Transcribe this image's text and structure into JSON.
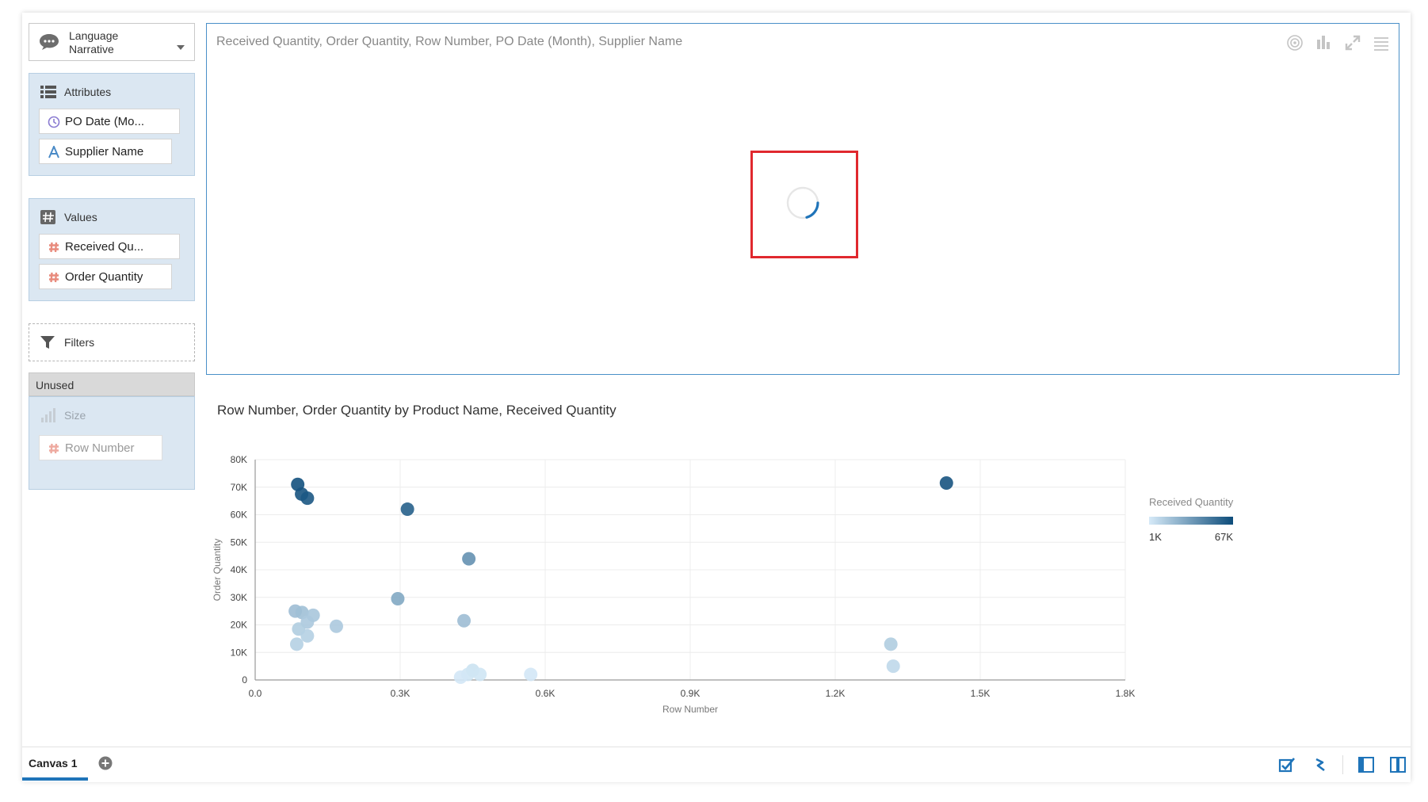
{
  "left_panel": {
    "narrative": {
      "line1": "Language",
      "line2": "Narrative"
    },
    "attributes": {
      "title": "Attributes",
      "items": [
        "PO Date (Mo...",
        "Supplier Name"
      ]
    },
    "values": {
      "title": "Values",
      "items": [
        "Received Qu...",
        "Order Quantity"
      ]
    },
    "filters": {
      "title": "Filters"
    },
    "unused": {
      "title": "Unused",
      "size_label": "Size",
      "items": [
        "Row Number"
      ]
    }
  },
  "top_viz": {
    "title": "Received Quantity, Order Quantity, Row Number, PO Date (Month), Supplier Name",
    "highlight_color": "#e0282e"
  },
  "chart": {
    "title": "Row Number, Order Quantity by Product Name, Received Quantity"
  },
  "chart_data": {
    "type": "scatter",
    "title": "Row Number, Order Quantity by Product Name, Received Quantity",
    "xlabel": "Row Number",
    "ylabel": "Order Quantity",
    "xlim": [
      0,
      1800
    ],
    "ylim": [
      0,
      80000
    ],
    "xticks": [
      "0.0",
      "0.3K",
      "0.6K",
      "0.9K",
      "1.2K",
      "1.5K",
      "1.8K"
    ],
    "yticks": [
      "0",
      "10K",
      "20K",
      "30K",
      "40K",
      "50K",
      "60K",
      "70K",
      "80K"
    ],
    "grid": true,
    "legend": {
      "title": "Received Quantity",
      "min_label": "1K",
      "max_label": "67K",
      "position": "right",
      "color_low": "#d6eaf8",
      "color_high": "#0d4c7a"
    },
    "points": [
      {
        "x": 88,
        "y": 71000,
        "c": 64000
      },
      {
        "x": 96,
        "y": 67500,
        "c": 62000
      },
      {
        "x": 108,
        "y": 66000,
        "c": 60000
      },
      {
        "x": 315,
        "y": 62000,
        "c": 55000
      },
      {
        "x": 1430,
        "y": 71500,
        "c": 62000
      },
      {
        "x": 442,
        "y": 44000,
        "c": 30000
      },
      {
        "x": 295,
        "y": 29500,
        "c": 20000
      },
      {
        "x": 432,
        "y": 21500,
        "c": 12000
      },
      {
        "x": 83,
        "y": 25000,
        "c": 12000
      },
      {
        "x": 97,
        "y": 24500,
        "c": 11000
      },
      {
        "x": 120,
        "y": 23500,
        "c": 9000
      },
      {
        "x": 108,
        "y": 21000,
        "c": 8000
      },
      {
        "x": 168,
        "y": 19500,
        "c": 8000
      },
      {
        "x": 90,
        "y": 18500,
        "c": 7000
      },
      {
        "x": 108,
        "y": 16000,
        "c": 6000
      },
      {
        "x": 86,
        "y": 13000,
        "c": 6000
      },
      {
        "x": 1315,
        "y": 13000,
        "c": 7000
      },
      {
        "x": 1320,
        "y": 5000,
        "c": 4000
      },
      {
        "x": 450,
        "y": 3500,
        "c": 2000
      },
      {
        "x": 440,
        "y": 2000,
        "c": 1500
      },
      {
        "x": 465,
        "y": 2000,
        "c": 1500
      },
      {
        "x": 425,
        "y": 1000,
        "c": 1200
      },
      {
        "x": 570,
        "y": 2000,
        "c": 1200
      }
    ]
  }
}
